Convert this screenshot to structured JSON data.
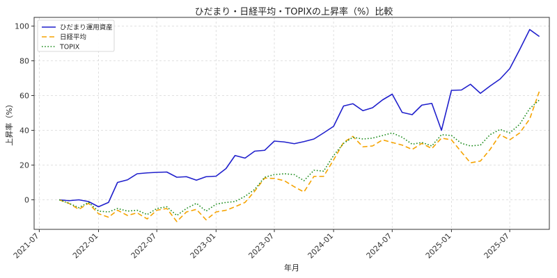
{
  "chart_data": {
    "type": "line",
    "title": "ひだまり・日経平均・TOPIXの上昇率（%）比較",
    "xlabel": "年月",
    "ylabel": "上昇率（%）",
    "ylim": [
      -17,
      105
    ],
    "xlim": [
      "2021-06-15",
      "2025-11-01"
    ],
    "yticks": [
      0,
      20,
      40,
      60,
      80,
      100
    ],
    "xticks": [
      "2021-07",
      "2022-01",
      "2022-07",
      "2023-01",
      "2023-07",
      "2024-01",
      "2024-07",
      "2025-01",
      "2025-07"
    ],
    "grid": true,
    "legend_position": "top-left",
    "x": [
      "2021-09",
      "2021-10",
      "2021-11",
      "2021-12",
      "2022-01",
      "2022-02",
      "2022-03",
      "2022-04",
      "2022-05",
      "2022-06",
      "2022-07",
      "2022-08",
      "2022-09",
      "2022-10",
      "2022-11",
      "2022-12",
      "2023-01",
      "2023-02",
      "2023-03",
      "2023-04",
      "2023-05",
      "2023-06",
      "2023-07",
      "2023-08",
      "2023-09",
      "2023-10",
      "2023-11",
      "2023-12",
      "2024-01",
      "2024-02",
      "2024-03",
      "2024-04",
      "2024-05",
      "2024-06",
      "2024-07",
      "2024-08",
      "2024-09",
      "2024-10",
      "2024-11",
      "2024-12",
      "2025-01",
      "2025-02",
      "2025-03",
      "2025-04",
      "2025-05",
      "2025-06",
      "2025-07",
      "2025-08",
      "2025-09",
      "2025-10"
    ],
    "series": [
      {
        "name": "ひだまり運用資産",
        "color": "#1f1fcc",
        "style": "solid",
        "values": [
          0,
          -0.5,
          0,
          -1,
          -4,
          -1.5,
          10,
          11.5,
          15,
          15.5,
          15.8,
          16,
          13,
          13.3,
          11.3,
          13.3,
          13.6,
          18,
          25.5,
          24,
          28,
          28.5,
          33.8,
          33.3,
          32.3,
          33.5,
          35,
          38.5,
          42.3,
          54,
          55.3,
          51.3,
          53,
          57.5,
          60.8,
          50.3,
          49,
          54.5,
          55.5,
          40,
          63,
          63.2,
          66.5,
          61.3,
          65.5,
          69.5,
          75.5,
          86.5,
          98,
          94
        ]
      },
      {
        "name": "日経平均",
        "color": "#f5a300",
        "style": "dashed",
        "values": [
          0,
          -2,
          -5.5,
          -2,
          -8,
          -10,
          -6,
          -9,
          -7.5,
          -11,
          -6,
          -5,
          -12.5,
          -7,
          -5.5,
          -11.5,
          -7,
          -6,
          -4,
          -1.5,
          5,
          12.5,
          12.3,
          11,
          7.5,
          4.5,
          13.5,
          13.5,
          23,
          33,
          36.5,
          30.5,
          31,
          34.5,
          33,
          31.5,
          29,
          32.5,
          29.5,
          35.5,
          34.5,
          27.5,
          21.3,
          22.3,
          29,
          37.5,
          34.5,
          38.5,
          46.5,
          62.5
        ]
      },
      {
        "name": "TOPIX",
        "color": "#1a8a1a",
        "style": "dotted",
        "values": [
          0,
          -2,
          -4.5,
          -1.5,
          -6.5,
          -7,
          -5,
          -6.5,
          -6,
          -8.5,
          -5,
          -4,
          -9,
          -5,
          -2,
          -6.5,
          -2.5,
          -1.5,
          -1,
          2,
          6,
          13,
          14.5,
          15,
          14.5,
          11,
          17,
          16.5,
          25.5,
          32.5,
          36,
          35,
          35.5,
          37,
          38.5,
          36,
          32,
          33,
          31,
          37.5,
          37,
          32.5,
          31,
          31.5,
          37.5,
          40.5,
          38.5,
          43.5,
          52.5,
          57.5
        ]
      }
    ]
  }
}
